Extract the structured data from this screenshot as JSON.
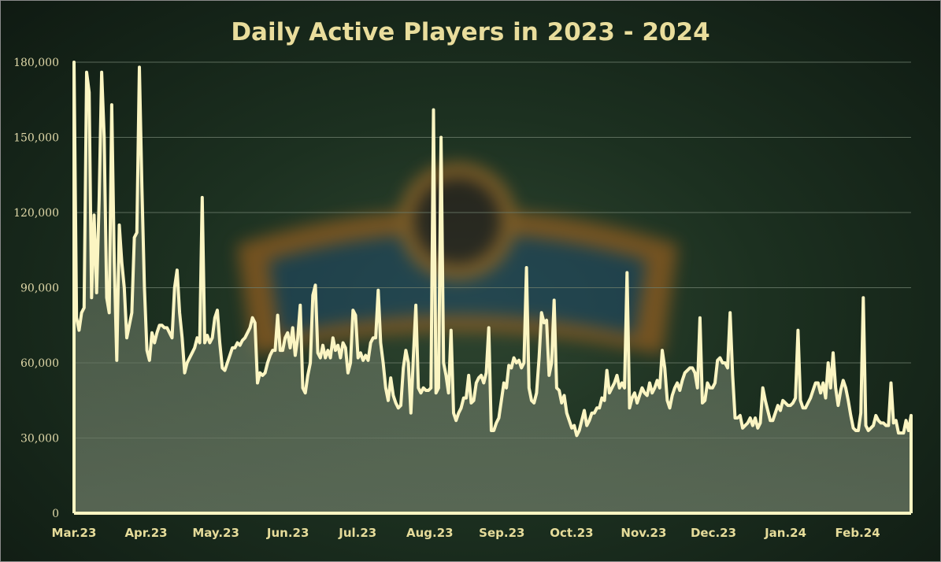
{
  "chart_data": {
    "type": "area",
    "title": "Daily Active Players in 2023 - 2024",
    "xlabel": "",
    "ylabel": "",
    "ylim": [
      0,
      180000
    ],
    "yticks": [
      0,
      30000,
      60000,
      90000,
      120000,
      150000,
      180000
    ],
    "ytick_labels": [
      "0",
      "30,000",
      "60,000",
      "90,000",
      "120,000",
      "150,000",
      "180,000"
    ],
    "xticks": [
      "Mar.23",
      "Apr.23",
      "May.23",
      "Jun.23",
      "Jul.23",
      "Aug.23",
      "Sep.23",
      "Oct.23",
      "Nov.23",
      "Dec.23",
      "Jan.24",
      "Feb.24"
    ],
    "x_start": "2023-03-01",
    "x_end": "2024-02-24",
    "grid": true,
    "line_color": "#fbf5c2",
    "series": [
      {
        "values": [
          180000,
          78000,
          73000,
          80000,
          82000,
          176000,
          168000,
          86000,
          119000,
          88000,
          125000,
          176000,
          150000,
          86000,
          80000,
          163000,
          100000,
          61000,
          115000,
          100000,
          90000,
          70000,
          75000,
          80000,
          110000,
          112000,
          178000,
          130000,
          90000,
          65000,
          61000,
          72000,
          68000,
          72000,
          75000,
          75000,
          74000,
          74000,
          72000,
          70000,
          90000,
          97000,
          80000,
          70000,
          56000,
          60000,
          62000,
          64000,
          66000,
          70000,
          68000,
          126000,
          68000,
          71000,
          68000,
          70000,
          78000,
          81000,
          68000,
          58000,
          57000,
          60000,
          63000,
          66000,
          66000,
          68000,
          67000,
          69000,
          70000,
          72000,
          74000,
          78000,
          76000,
          52000,
          56000,
          55000,
          56000,
          60000,
          63000,
          65000,
          65000,
          79000,
          65000,
          65000,
          70000,
          72000,
          66000,
          74000,
          63000,
          70000,
          83000,
          50000,
          48000,
          55000,
          60000,
          87000,
          91000,
          64000,
          62000,
          67000,
          62000,
          65000,
          62000,
          70000,
          65000,
          67000,
          62000,
          68000,
          66000,
          56000,
          60000,
          81000,
          79000,
          62000,
          64000,
          61000,
          63000,
          61000,
          68000,
          70000,
          70000,
          89000,
          68000,
          60000,
          50000,
          45000,
          54000,
          47000,
          44000,
          42000,
          43000,
          58000,
          65000,
          60000,
          40000,
          62000,
          83000,
          50000,
          48000,
          50000,
          49000,
          49000,
          50000,
          161000,
          48000,
          50000,
          150000,
          60000,
          55000,
          48000,
          73000,
          40000,
          37000,
          40000,
          42000,
          46000,
          46000,
          55000,
          44000,
          45000,
          52000,
          54000,
          55000,
          52000,
          56000,
          74000,
          33000,
          33000,
          36000,
          38000,
          45000,
          52000,
          50000,
          59000,
          58000,
          62000,
          60000,
          61000,
          58000,
          60000,
          98000,
          50000,
          45000,
          44000,
          48000,
          62000,
          80000,
          76000,
          77000,
          55000,
          60000,
          85000,
          50000,
          49000,
          44000,
          47000,
          40000,
          37000,
          34000,
          35000,
          31000,
          33000,
          37000,
          41000,
          35000,
          37000,
          40000,
          40000,
          42000,
          42000,
          46000,
          45000,
          57000,
          48000,
          50000,
          52000,
          55000,
          50000,
          52000,
          50000,
          96000,
          42000,
          46000,
          48000,
          44000,
          47000,
          50000,
          48000,
          47000,
          52000,
          48000,
          50000,
          53000,
          50000,
          65000,
          58000,
          45000,
          42000,
          47000,
          50000,
          52000,
          49000,
          53000,
          56000,
          57000,
          58000,
          58000,
          56000,
          50000,
          78000,
          44000,
          45000,
          52000,
          50000,
          50000,
          52000,
          61000,
          62000,
          60000,
          60000,
          58000,
          80000,
          55000,
          38000,
          38000,
          39000,
          34000,
          35000,
          36000,
          38000,
          35000,
          38000,
          34000,
          36000,
          50000,
          45000,
          41000,
          37000,
          37000,
          40000,
          43000,
          41000,
          45000,
          44000,
          43000,
          43000,
          44000,
          46000,
          73000,
          45000,
          42000,
          42000,
          44000,
          46000,
          49000,
          52000,
          52000,
          48000,
          52000,
          46000,
          60000,
          50000,
          64000,
          50000,
          43000,
          49000,
          53000,
          50000,
          45000,
          39000,
          34000,
          33000,
          33000,
          40000,
          86000,
          35000,
          33000,
          34000,
          35000,
          39000,
          37000,
          36000,
          36000,
          35000,
          35000,
          52000,
          36000,
          37000,
          32000,
          32000,
          32000,
          37000,
          33000,
          39000
        ]
      }
    ]
  }
}
